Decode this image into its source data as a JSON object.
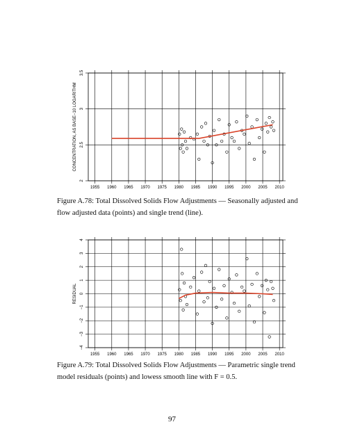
{
  "chart_data": [
    {
      "type": "scatter",
      "ylabel": "CONCENTRATION, AS BASE−10 LOGARITHM",
      "xlim": [
        1953,
        2011
      ],
      "xticks": [
        1955,
        1960,
        1965,
        1970,
        1975,
        1980,
        1985,
        1990,
        1995,
        2000,
        2005,
        2010
      ],
      "ylim": [
        2,
        3.5
      ],
      "yticks": [
        2,
        2.5,
        3,
        3.5
      ],
      "grid": true,
      "series": [
        {
          "style": "points",
          "color": "#000000",
          "x": [
            1980.2,
            1980.5,
            1980.8,
            1981,
            1981.3,
            1981.6,
            1982,
            1982.4,
            1983.5,
            1984.5,
            1985.5,
            1986,
            1986.8,
            1987.5,
            1988,
            1988.6,
            1989.2,
            1990,
            1990.5,
            1991.2,
            1992,
            1992.8,
            1993.5,
            1994.3,
            1995,
            1995.8,
            1996.5,
            1997.2,
            1998,
            1998.8,
            1999.5,
            2000.3,
            2001,
            2001.8,
            2002.5,
            2003.3,
            2004,
            2004.8,
            2005.5,
            2006,
            2006.5,
            2007,
            2007.5,
            2008,
            2008.3
          ],
          "values": [
            2.65,
            2.45,
            2.72,
            2.5,
            2.4,
            2.68,
            2.55,
            2.45,
            2.6,
            2.58,
            2.65,
            2.3,
            2.75,
            2.55,
            2.8,
            2.5,
            2.62,
            2.25,
            2.7,
            2.5,
            2.85,
            2.55,
            2.65,
            2.4,
            2.78,
            2.6,
            2.55,
            2.82,
            2.45,
            2.7,
            2.65,
            2.9,
            2.52,
            2.75,
            2.3,
            2.85,
            2.6,
            2.72,
            2.4,
            2.8,
            2.68,
            2.88,
            2.75,
            2.82,
            2.7
          ]
        },
        {
          "style": "line",
          "color": "#d9442a",
          "x": [
            1960,
            1986,
            2008
          ],
          "values": [
            2.59,
            2.59,
            2.78
          ]
        }
      ]
    },
    {
      "type": "scatter",
      "ylabel": "RESIDUAL",
      "xlim": [
        1953,
        2011
      ],
      "xticks": [
        1955,
        1960,
        1965,
        1970,
        1975,
        1980,
        1985,
        1990,
        1995,
        2000,
        2005,
        2010
      ],
      "ylim": [
        -4,
        4
      ],
      "yticks": [
        {
          "value": -4,
          "label": "−4"
        },
        {
          "value": -3,
          "label": "−3"
        },
        {
          "value": -2,
          "label": "−2"
        },
        {
          "value": -1,
          "label": "−1"
        },
        0,
        1,
        2,
        3,
        4
      ],
      "grid": true,
      "series": [
        {
          "style": "points",
          "color": "#000000",
          "x": [
            1980.2,
            1980.5,
            1980.8,
            1981,
            1981.3,
            1981.6,
            1982,
            1982.4,
            1983.5,
            1984.5,
            1985.5,
            1986,
            1986.8,
            1987.5,
            1988,
            1988.6,
            1989.2,
            1990,
            1990.5,
            1991.2,
            1992,
            1992.8,
            1993.5,
            1994.3,
            1995,
            1995.8,
            1996.5,
            1997.2,
            1998,
            1998.8,
            1999.5,
            2000.3,
            2001,
            2001.8,
            2002.5,
            2003.3,
            2004,
            2004.8,
            2005.5,
            2006,
            2006.5,
            2007,
            2007.5,
            2008,
            2008.3
          ],
          "values": [
            0.3,
            -0.5,
            3.3,
            1.5,
            -1.2,
            0.8,
            -0.2,
            -0.8,
            0.5,
            1.2,
            -1.5,
            0.2,
            1.6,
            -0.6,
            2.1,
            -0.3,
            0.9,
            -2.2,
            0.4,
            -1,
            1.8,
            -0.4,
            0.6,
            -1.8,
            1.1,
            0.1,
            -0.7,
            1.4,
            -1.3,
            0.5,
            0.2,
            2.6,
            -0.9,
            0.7,
            -2.1,
            1.5,
            -0.2,
            0.6,
            -1.4,
            1,
            0.3,
            -3.2,
            0.9,
            0.4,
            -0.5
          ]
        },
        {
          "style": "line",
          "color": "#d9442a",
          "x": [
            1980,
            1982,
            1985,
            1990,
            1995,
            2000,
            2005,
            2008
          ],
          "values": [
            -0.35,
            -0.1,
            0.05,
            0.1,
            0.05,
            0.05,
            0,
            -0.05
          ]
        }
      ]
    }
  ],
  "captions": [
    "Figure A.78: Total Dissolved Solids Flow Adjustments — Seasonally adjusted and flow adjusted data (points) and single trend (line).",
    "Figure A.79: Total Dissolved Solids Flow Adjustments — Parametric single trend model residuals (points) and lowess smooth line with F = 0.5."
  ],
  "page_number": "97"
}
